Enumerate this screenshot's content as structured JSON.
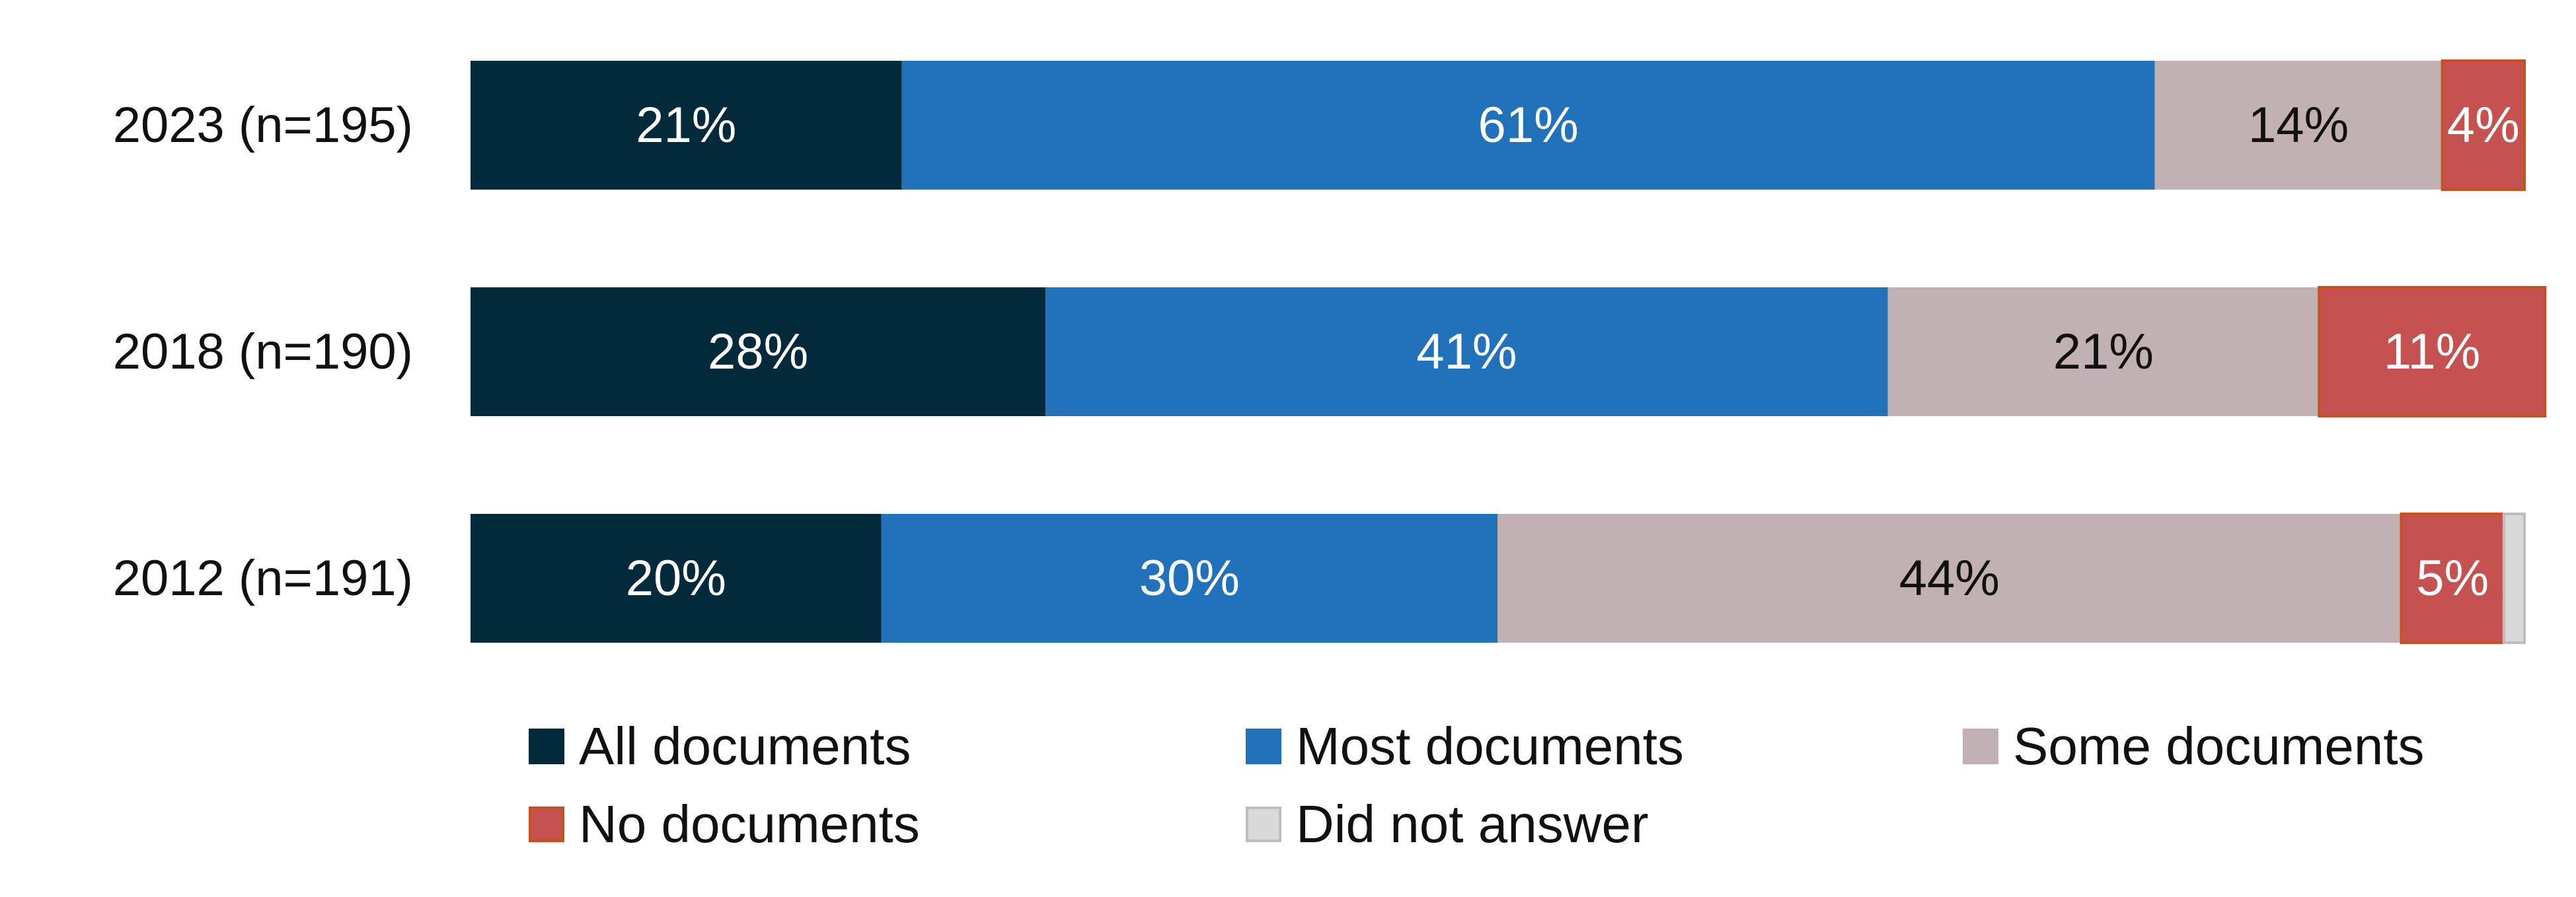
{
  "chart_data": {
    "type": "bar",
    "orientation": "horizontal",
    "stacked": true,
    "title": "",
    "xlabel": "",
    "ylabel": "",
    "xlim": [
      0,
      100
    ],
    "grid": false,
    "legend_position": "bottom",
    "categories": [
      "2023 (n=195)",
      "2018 (n=190)",
      "2012 (n=191)"
    ],
    "series": [
      {
        "name": "All documents",
        "color": "#022a3b",
        "label_color": "#ffffff",
        "values": [
          21,
          28,
          20
        ],
        "labels": [
          "21%",
          "28%",
          "20%"
        ]
      },
      {
        "name": "Most documents",
        "color": "#2272bb",
        "label_color": "#ffffff",
        "values": [
          61,
          41,
          30
        ],
        "labels": [
          "61%",
          "41%",
          "30%"
        ]
      },
      {
        "name": "Some documents",
        "color": "#c2b1b4",
        "label_color": "#111111",
        "values": [
          14,
          21,
          44
        ],
        "labels": [
          "14%",
          "21%",
          "44%"
        ]
      },
      {
        "name": "No documents",
        "color": "#c55150",
        "border": "#c8501c",
        "label_color": "#ffffff",
        "values": [
          4,
          11,
          5
        ],
        "labels": [
          "4%",
          "11%",
          "5%"
        ]
      },
      {
        "name": "Did not answer",
        "color": "#d9d9d9",
        "border": "#bdbdbd",
        "label_color": "#111111",
        "values": [
          0,
          0,
          1
        ],
        "labels": [
          "",
          "",
          ""
        ]
      }
    ]
  }
}
